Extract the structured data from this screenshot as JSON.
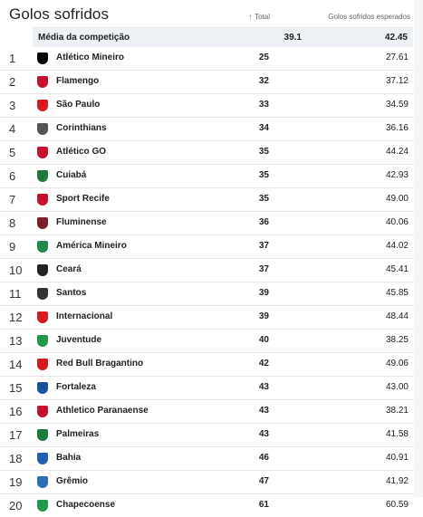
{
  "header": {
    "title": "Golos sofridos",
    "col_total": "Total",
    "col_xg": "Golos sofridos esperados",
    "sort_icon": "arrow-up-icon"
  },
  "average": {
    "label": "Média da competição",
    "total": "39.1",
    "xg": "42.45"
  },
  "rows": [
    {
      "pos": "1",
      "team": "Atlético Mineiro",
      "total": "25",
      "xg": "27.61",
      "color": "#000000"
    },
    {
      "pos": "2",
      "team": "Flamengo",
      "total": "32",
      "xg": "37.12",
      "color": "#c8102e"
    },
    {
      "pos": "3",
      "team": "São Paulo",
      "total": "33",
      "xg": "34.59",
      "color": "#d71920"
    },
    {
      "pos": "4",
      "team": "Corinthians",
      "total": "34",
      "xg": "36.16",
      "color": "#555555"
    },
    {
      "pos": "5",
      "team": "Atlético GO",
      "total": "35",
      "xg": "44.24",
      "color": "#c8102e"
    },
    {
      "pos": "6",
      "team": "Cuiabá",
      "total": "35",
      "xg": "42.93",
      "color": "#1f7a3a"
    },
    {
      "pos": "7",
      "team": "Sport Recife",
      "total": "35",
      "xg": "49.00",
      "color": "#c8102e"
    },
    {
      "pos": "8",
      "team": "Fluminense",
      "total": "36",
      "xg": "40.06",
      "color": "#7a1f2b"
    },
    {
      "pos": "9",
      "team": "América Mineiro",
      "total": "37",
      "xg": "44.02",
      "color": "#1f8a4c"
    },
    {
      "pos": "10",
      "team": "Ceará",
      "total": "37",
      "xg": "45.41",
      "color": "#222222"
    },
    {
      "pos": "11",
      "team": "Santos",
      "total": "39",
      "xg": "45.85",
      "color": "#333333"
    },
    {
      "pos": "12",
      "team": "Internacional",
      "total": "39",
      "xg": "48.44",
      "color": "#d71920"
    },
    {
      "pos": "13",
      "team": "Juventude",
      "total": "40",
      "xg": "38.25",
      "color": "#1f9a4a"
    },
    {
      "pos": "14",
      "team": "Red Bull Bragantino",
      "total": "42",
      "xg": "49.06",
      "color": "#d71920"
    },
    {
      "pos": "15",
      "team": "Fortaleza",
      "total": "43",
      "xg": "43.00",
      "color": "#1d4fa0"
    },
    {
      "pos": "16",
      "team": "Athletico Paranaense",
      "total": "43",
      "xg": "38.21",
      "color": "#c8102e"
    },
    {
      "pos": "17",
      "team": "Palmeiras",
      "total": "43",
      "xg": "41.58",
      "color": "#1b7a3e"
    },
    {
      "pos": "18",
      "team": "Bahia",
      "total": "46",
      "xg": "40.91",
      "color": "#1d5fb0"
    },
    {
      "pos": "19",
      "team": "Grêmio",
      "total": "47",
      "xg": "41.92",
      "color": "#2a6fb5"
    },
    {
      "pos": "20",
      "team": "Chapecoense",
      "total": "61",
      "xg": "60.59",
      "color": "#1f9a4a"
    }
  ]
}
